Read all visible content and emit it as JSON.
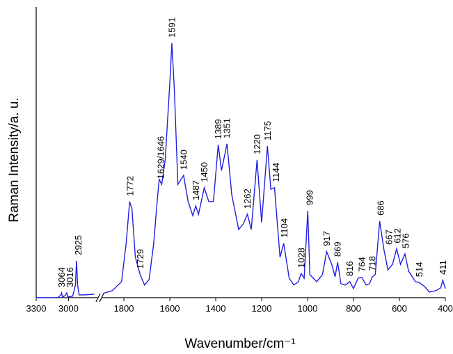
{
  "chart_data": {
    "type": "line",
    "x_label": "Wavenumber/cm⁻¹",
    "y_label": "Raman Intensity/a. u.",
    "color": "#2020e0",
    "x_segments": [
      [
        3300,
        2750
      ],
      [
        1900,
        400
      ]
    ],
    "ylim": [
      0,
      115
    ],
    "xticks": [
      3300,
      3000,
      1800,
      1600,
      1400,
      1200,
      1000,
      800,
      600,
      400
    ],
    "x": [
      3300,
      3100,
      3070,
      3064,
      3055,
      3030,
      3016,
      3005,
      2960,
      2935,
      2925,
      2915,
      2900,
      2850,
      2760,
      1890,
      1850,
      1810,
      1790,
      1775,
      1765,
      1750,
      1729,
      1710,
      1690,
      1670,
      1655,
      1646,
      1635,
      1620,
      1600,
      1591,
      1580,
      1565,
      1540,
      1520,
      1500,
      1487,
      1475,
      1450,
      1430,
      1410,
      1389,
      1375,
      1351,
      1330,
      1300,
      1280,
      1262,
      1245,
      1220,
      1200,
      1175,
      1160,
      1144,
      1120,
      1104,
      1080,
      1060,
      1040,
      1028,
      1015,
      999,
      990,
      960,
      935,
      917,
      895,
      880,
      869,
      855,
      835,
      816,
      800,
      780,
      764,
      745,
      730,
      718,
      705,
      686,
      667,
      650,
      630,
      612,
      595,
      576,
      560,
      530,
      514,
      490,
      470,
      440,
      420,
      411,
      400
    ],
    "values": [
      0,
      0,
      1.1,
      1.9,
      0.3,
      0.8,
      1.9,
      0.3,
      0.6,
      5,
      14.6,
      5,
      1.1,
      1.1,
      1.4,
      1.7,
      2.8,
      6.3,
      21.5,
      38,
      35.2,
      16,
      9.1,
      5,
      7.2,
      21.5,
      38,
      46.8,
      44.8,
      54.5,
      84.7,
      100.7,
      82,
      44.8,
      48.4,
      38,
      32.5,
      36.3,
      33,
      43.5,
      38,
      38,
      60.5,
      50.3,
      60.8,
      40.7,
      27,
      29.2,
      33,
      27,
      54.5,
      29.7,
      60,
      42.9,
      43.5,
      16,
      21.5,
      7.7,
      5,
      6.3,
      9.6,
      7.7,
      34.4,
      9.1,
      6.3,
      9.1,
      18.2,
      13.2,
      8.3,
      14,
      5.5,
      5,
      6.3,
      3.6,
      7.7,
      8,
      5,
      5.5,
      8.3,
      9.1,
      30.3,
      18.7,
      11,
      13.2,
      19.3,
      13.2,
      17.3,
      10.5,
      6.3,
      6,
      4.4,
      2.2,
      2.8,
      3.9,
      6.9,
      3.6
    ],
    "peaks": [
      {
        "x": 3064,
        "label": "3064"
      },
      {
        "x": 3016,
        "label": "3016"
      },
      {
        "x": 2925,
        "label": "2925"
      },
      {
        "x": 1772,
        "label": "1772"
      },
      {
        "x": 1729,
        "label": "1729"
      },
      {
        "x": 1640,
        "label": "1629/1646"
      },
      {
        "x": 1591,
        "label": "1591"
      },
      {
        "x": 1540,
        "label": "1540"
      },
      {
        "x": 1487,
        "label": "1487"
      },
      {
        "x": 1450,
        "label": "1450"
      },
      {
        "x": 1389,
        "label": "1389"
      },
      {
        "x": 1351,
        "label": "1351"
      },
      {
        "x": 1262,
        "label": "1262"
      },
      {
        "x": 1220,
        "label": "1220"
      },
      {
        "x": 1175,
        "label": "1175"
      },
      {
        "x": 1144,
        "label": "1144"
      },
      {
        "x": 1104,
        "label": "1104"
      },
      {
        "x": 1028,
        "label": "1028"
      },
      {
        "x": 999,
        "label": "999"
      },
      {
        "x": 917,
        "label": "917"
      },
      {
        "x": 869,
        "label": "869"
      },
      {
        "x": 816,
        "label": "816"
      },
      {
        "x": 764,
        "label": "764"
      },
      {
        "x": 718,
        "label": "718"
      },
      {
        "x": 686,
        "label": "686"
      },
      {
        "x": 667,
        "label": "667"
      },
      {
        "x": 612,
        "label": "612"
      },
      {
        "x": 576,
        "label": "576"
      },
      {
        "x": 514,
        "label": "514"
      },
      {
        "x": 411,
        "label": "411"
      }
    ]
  }
}
